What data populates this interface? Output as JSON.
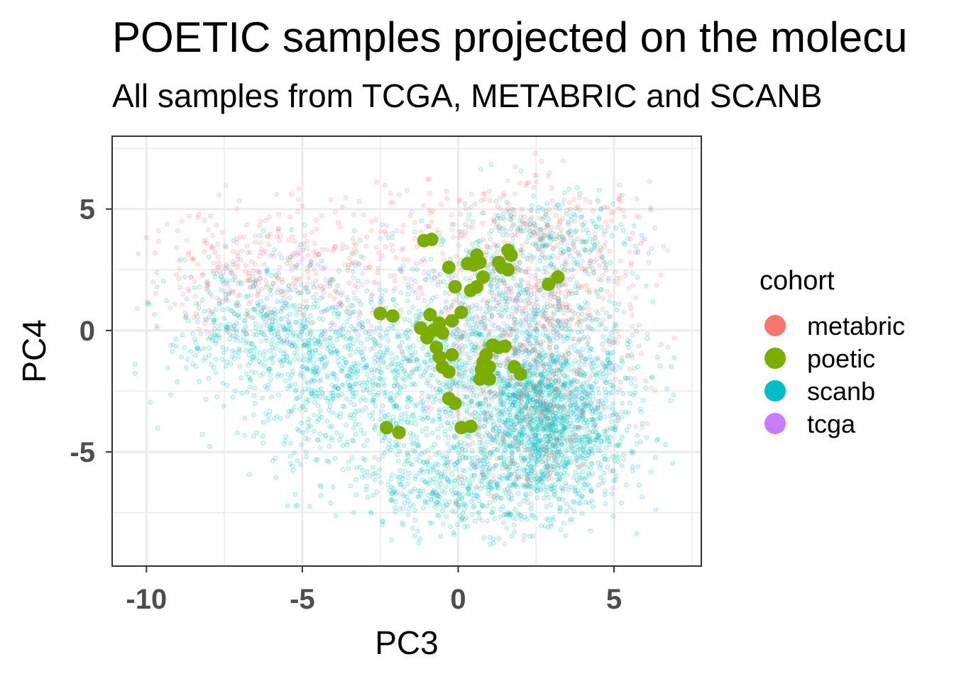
{
  "chart_data": {
    "type": "scatter",
    "title": "POETIC samples projected on the molecu",
    "subtitle": "All samples from TCGA, METABRIC and SCANB",
    "xlabel": "PC3",
    "ylabel": "PC4",
    "xlim": [
      -11.1,
      7.8
    ],
    "ylim": [
      -9.7,
      8.0
    ],
    "xticks": [
      -10,
      -5,
      0,
      5
    ],
    "yticks": [
      5,
      0,
      -5
    ],
    "xtick_labels": [
      "-10",
      "-5",
      "0",
      "5"
    ],
    "ytick_labels": [
      "5",
      "0",
      "-5"
    ],
    "grid": true,
    "theme": "bw",
    "legend": {
      "title": "cohort",
      "position": "right",
      "entries": [
        {
          "label": "metabric",
          "color": "#F8766D"
        },
        {
          "label": "poetic",
          "color": "#7CAE00"
        },
        {
          "label": "scanb",
          "color": "#00BFC4"
        },
        {
          "label": "tcga",
          "color": "#C77CFF"
        }
      ]
    },
    "series": [
      {
        "name": "poetic",
        "color": "#7CAE00",
        "points": [
          [
            -1.1,
            3.7
          ],
          [
            -0.85,
            3.75
          ],
          [
            0.6,
            3.1
          ],
          [
            1.6,
            3.3
          ],
          [
            1.7,
            3.1
          ],
          [
            1.3,
            2.8
          ],
          [
            1.4,
            2.6
          ],
          [
            1.6,
            2.5
          ],
          [
            0.3,
            2.75
          ],
          [
            0.5,
            2.7
          ],
          [
            0.7,
            2.8
          ],
          [
            -0.3,
            2.6
          ],
          [
            0.8,
            2.2
          ],
          [
            3.2,
            2.2
          ],
          [
            2.9,
            1.9
          ],
          [
            -0.1,
            1.8
          ],
          [
            0.4,
            1.65
          ],
          [
            0.6,
            1.8
          ],
          [
            -2.5,
            0.7
          ],
          [
            -2.1,
            0.6
          ],
          [
            -0.9,
            0.65
          ],
          [
            0.1,
            0.75
          ],
          [
            -0.2,
            0.4
          ],
          [
            -0.6,
            0.3
          ],
          [
            -1.2,
            0.1
          ],
          [
            -0.8,
            0.0
          ],
          [
            -0.5,
            -0.1
          ],
          [
            -1.0,
            -0.3
          ],
          [
            -0.7,
            -0.7
          ],
          [
            -0.6,
            -1.1
          ],
          [
            -0.2,
            -1.0
          ],
          [
            -0.5,
            -1.5
          ],
          [
            -0.3,
            -1.7
          ],
          [
            1.1,
            -0.6
          ],
          [
            1.3,
            -0.7
          ],
          [
            1.5,
            -0.65
          ],
          [
            0.9,
            -1.0
          ],
          [
            0.8,
            -1.3
          ],
          [
            0.75,
            -1.6
          ],
          [
            1.0,
            -1.5
          ],
          [
            1.8,
            -1.5
          ],
          [
            2.0,
            -1.8
          ],
          [
            0.7,
            -2.0
          ],
          [
            1.0,
            -2.0
          ],
          [
            -0.3,
            -2.8
          ],
          [
            -0.1,
            -3.0
          ],
          [
            0.1,
            -4.0
          ],
          [
            0.4,
            -3.95
          ],
          [
            -2.3,
            -4.0
          ],
          [
            -1.9,
            -4.2
          ]
        ]
      }
    ]
  }
}
